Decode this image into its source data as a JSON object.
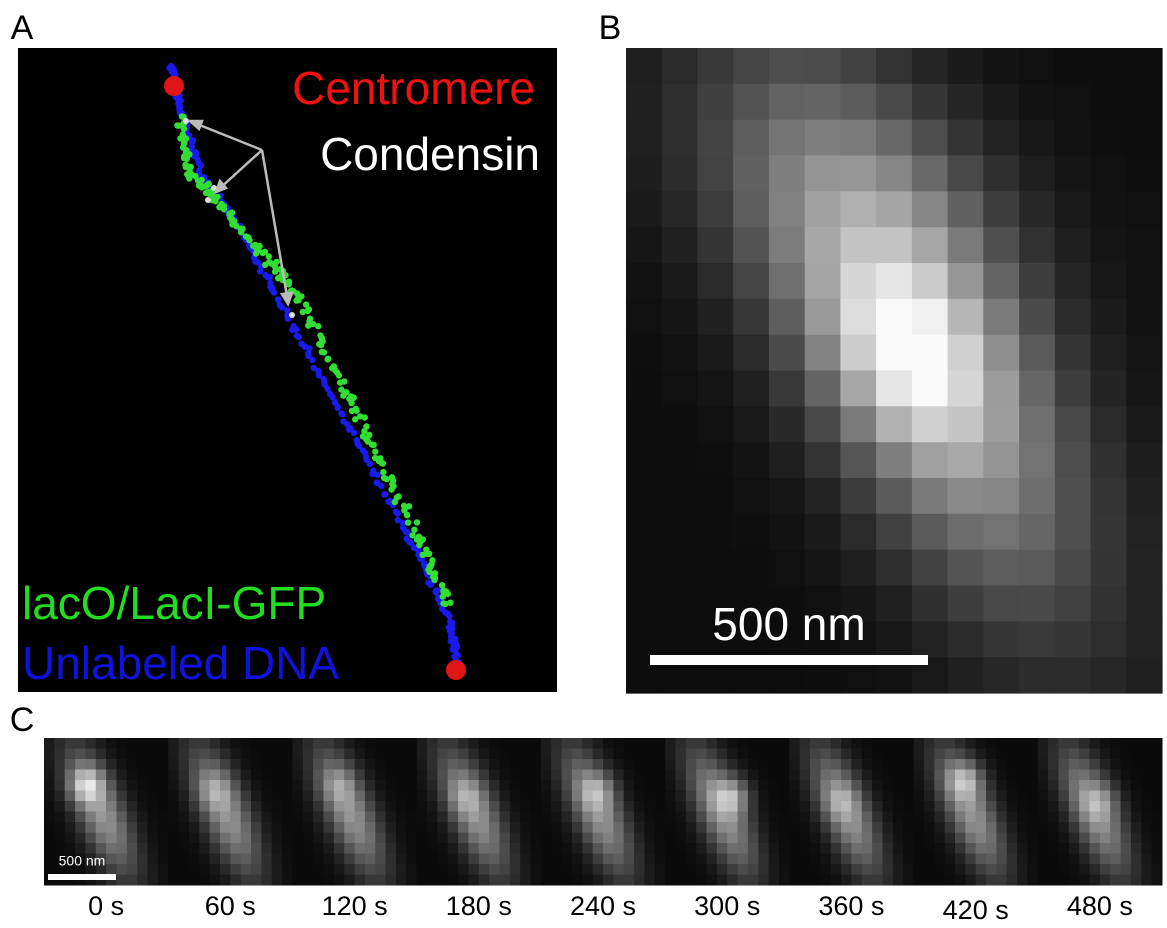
{
  "panel_a": {
    "label": "A",
    "legend": {
      "centromere": "Centromere",
      "condensin": "Condensin",
      "labeled": "lacO/LacI-GFP",
      "unlabeled": "Unlabeled DNA"
    }
  },
  "panel_b": {
    "label": "B",
    "scale_bar": "500 nm"
  },
  "panel_c": {
    "label": "C",
    "scale_bar": "500 nm",
    "times": [
      "0 s",
      "60 s",
      "120 s",
      "180 s",
      "240 s",
      "300 s",
      "360 s",
      "420 s",
      "480 s"
    ]
  }
}
